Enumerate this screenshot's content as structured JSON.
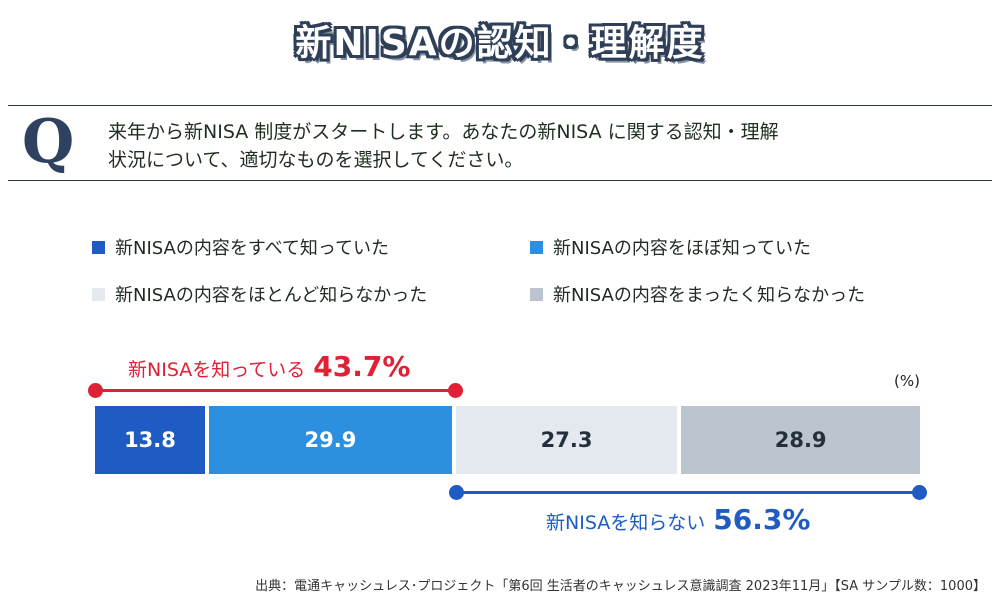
{
  "title": "新NISAの認知・理解度",
  "question": {
    "letter": "Q",
    "text_line1": "来年から新NISA 制度がスタートします。あなたの新NISA に関する認知・理解",
    "text_line2": "状況について、適切なものを選択してください。"
  },
  "unit": "(%)",
  "colors": {
    "s1": "#1e5cc4",
    "s2": "#2d8fe0",
    "s3": "#e3e9ee",
    "s4": "#bcc5cf",
    "know": "#e02035",
    "dontknow": "#1e5cc4"
  },
  "chart_data": {
    "type": "bar",
    "orientation": "horizontal-stacked-100",
    "categories": [
      ""
    ],
    "series": [
      {
        "name": "新NISAの内容をすべて知っていた",
        "values": [
          13.8
        ]
      },
      {
        "name": "新NISAの内容をほぼ知っていた",
        "values": [
          29.9
        ]
      },
      {
        "name": "新NISAの内容をほとんど知らなかった",
        "values": [
          27.3
        ]
      },
      {
        "name": "新NISAの内容をまったく知らなかった",
        "values": [
          28.9
        ]
      }
    ],
    "value_labels": [
      "13.8",
      "29.9",
      "27.3",
      "28.9"
    ],
    "annotations": [
      {
        "label": "新NISAを知っている",
        "value": "43.7%",
        "covers_series": [
          0,
          1
        ]
      },
      {
        "label": "新NISAを知らない",
        "value": "56.3%",
        "covers_series": [
          2,
          3
        ]
      }
    ],
    "legend_position": "top",
    "grid": false
  },
  "source": "出典：電通キャッシュレス･プロジェクト「第6回 生活者のキャッシュレス意識調査 2023年11月」【SA サンプル数：1000】"
}
